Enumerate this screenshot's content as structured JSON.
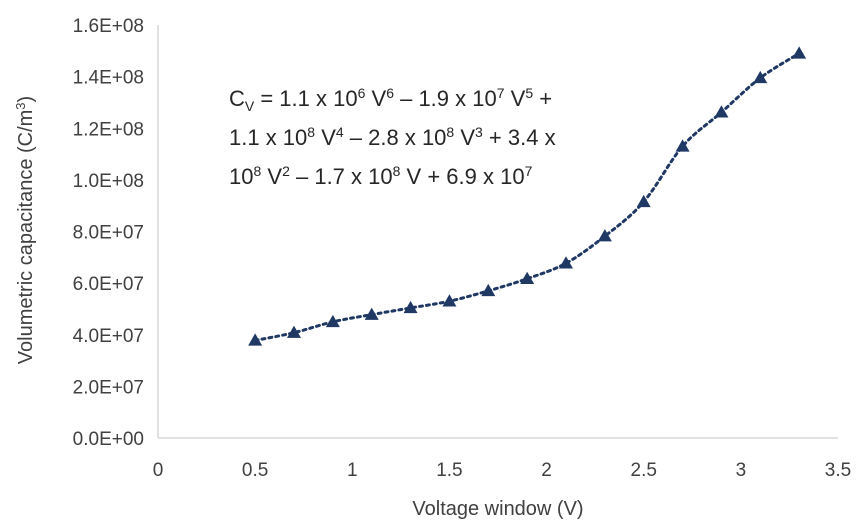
{
  "chart_data": {
    "type": "scatter",
    "xlabel": "Voltage window (V)",
    "ylabel_main": "Volumetric capacitance (C/m",
    "ylabel_sup": "3",
    "ylabel_end": ")",
    "xlim": [
      0,
      3.5
    ],
    "ylim": [
      0,
      160000000
    ],
    "x_ticks": [
      0,
      0.5,
      1,
      1.5,
      2,
      2.5,
      3,
      3.5
    ],
    "x_tick_labels": [
      "0",
      "0.5",
      "1",
      "1.5",
      "2",
      "2.5",
      "3",
      "3.5"
    ],
    "y_ticks": [
      0,
      20000000,
      40000000,
      60000000,
      80000000,
      100000000,
      120000000,
      140000000,
      160000000
    ],
    "y_tick_labels": [
      "0.0E+00",
      "2.0E+07",
      "4.0E+07",
      "6.0E+07",
      "8.0E+07",
      "1.0E+08",
      "1.2E+08",
      "1.4E+08",
      "1.6E+08"
    ],
    "grid": false,
    "series": [
      {
        "marker": "triangle",
        "color": "#1f3864",
        "x": [
          0.5,
          0.7,
          0.9,
          1.1,
          1.3,
          1.5,
          1.7,
          1.9,
          2.1,
          2.3,
          2.5,
          2.7,
          2.9,
          3.1,
          3.3
        ],
        "y": [
          37800000,
          40800000,
          45000000,
          47800000,
          50400000,
          53000000,
          57000000,
          61700000,
          67700000,
          78200000,
          91500000,
          113000000,
          126200000,
          139500000,
          149000000
        ]
      }
    ],
    "trendline": {
      "style": "dotted",
      "color": "#1f3864",
      "type": "polynomial",
      "coefficients_desc": [
        1100000,
        -19000000,
        110000000,
        -280000000,
        340000000,
        -170000000,
        69000000
      ]
    },
    "equation": {
      "line1": {
        "a": "C",
        "a_sub": "V",
        "b": " = 1.1 x 10",
        "b_sup": "6",
        "c": " V",
        "c_sup": "6",
        "d": " – 1.9 x 10",
        "d_sup": "7",
        "e": " V",
        "e_sup": "5",
        "f": " +"
      },
      "line2": {
        "a": "1.1 x 10",
        "a_sup": "8",
        "b": " V",
        "b_sup": "4",
        "c": " – 2.8 x 10",
        "c_sup": "8",
        "d": " V",
        "d_sup": "3",
        "e": " + 3.4 x"
      },
      "line3": {
        "a": "10",
        "a_sup": "8",
        "b": " V",
        "b_sup": "2",
        "c": " – 1.7 x 10",
        "c_sup": "8",
        "d": " V + 6.9 x 10",
        "d_sup": "7"
      }
    }
  }
}
